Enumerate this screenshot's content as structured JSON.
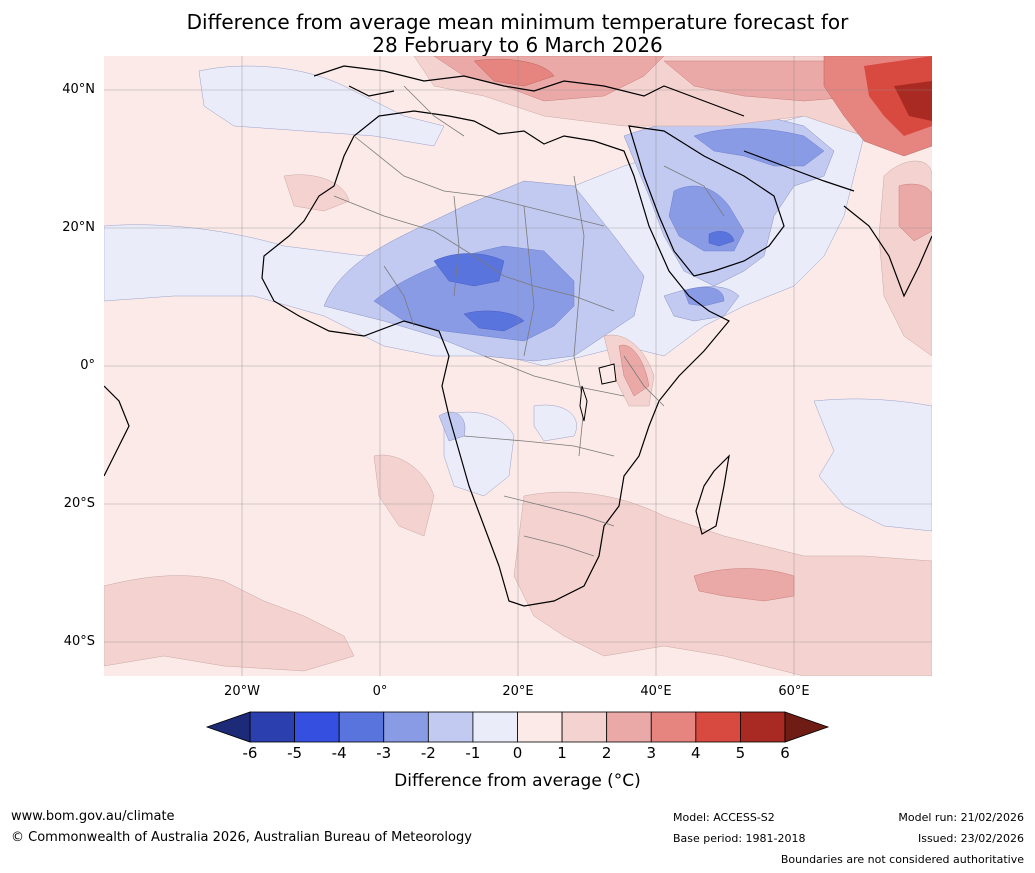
{
  "title": {
    "line1": "Difference from average mean minimum temperature forecast for",
    "line2": "28 February to 6 March 2026"
  },
  "latitude_labels": [
    "40°N",
    "20°N",
    "0°",
    "20°S",
    "40°S"
  ],
  "longitude_labels": [
    "20°W",
    "0°",
    "20°E",
    "40°E",
    "60°E"
  ],
  "colorbar": {
    "ticks": [
      "-6",
      "-5",
      "-4",
      "-3",
      "-2",
      "-1",
      "0",
      "1",
      "2",
      "3",
      "4",
      "5",
      "6"
    ],
    "colors": [
      "#1c2a78",
      "#2b3fae",
      "#3550e0",
      "#5a74de",
      "#8a9be6",
      "#c2caf2",
      "#eaecfa",
      "#fbeae8",
      "#f4d2d0",
      "#eaa9a6",
      "#e68580",
      "#d84a40",
      "#a82a22",
      "#6e1c14"
    ],
    "label": "Difference from average (°C)"
  },
  "footer": {
    "website": "www.bom.gov.au/climate",
    "copyright": "© Commonwealth of Australia 2026, Australian Bureau of Meteorology",
    "model": "Model: ACCESS-S2",
    "base_period": "Base period: 1981-2018",
    "model_run": "Model run: 21/02/2026",
    "issued": "Issued: 23/02/2026",
    "disclaimer": "Boundaries are not considered authoritative"
  }
}
